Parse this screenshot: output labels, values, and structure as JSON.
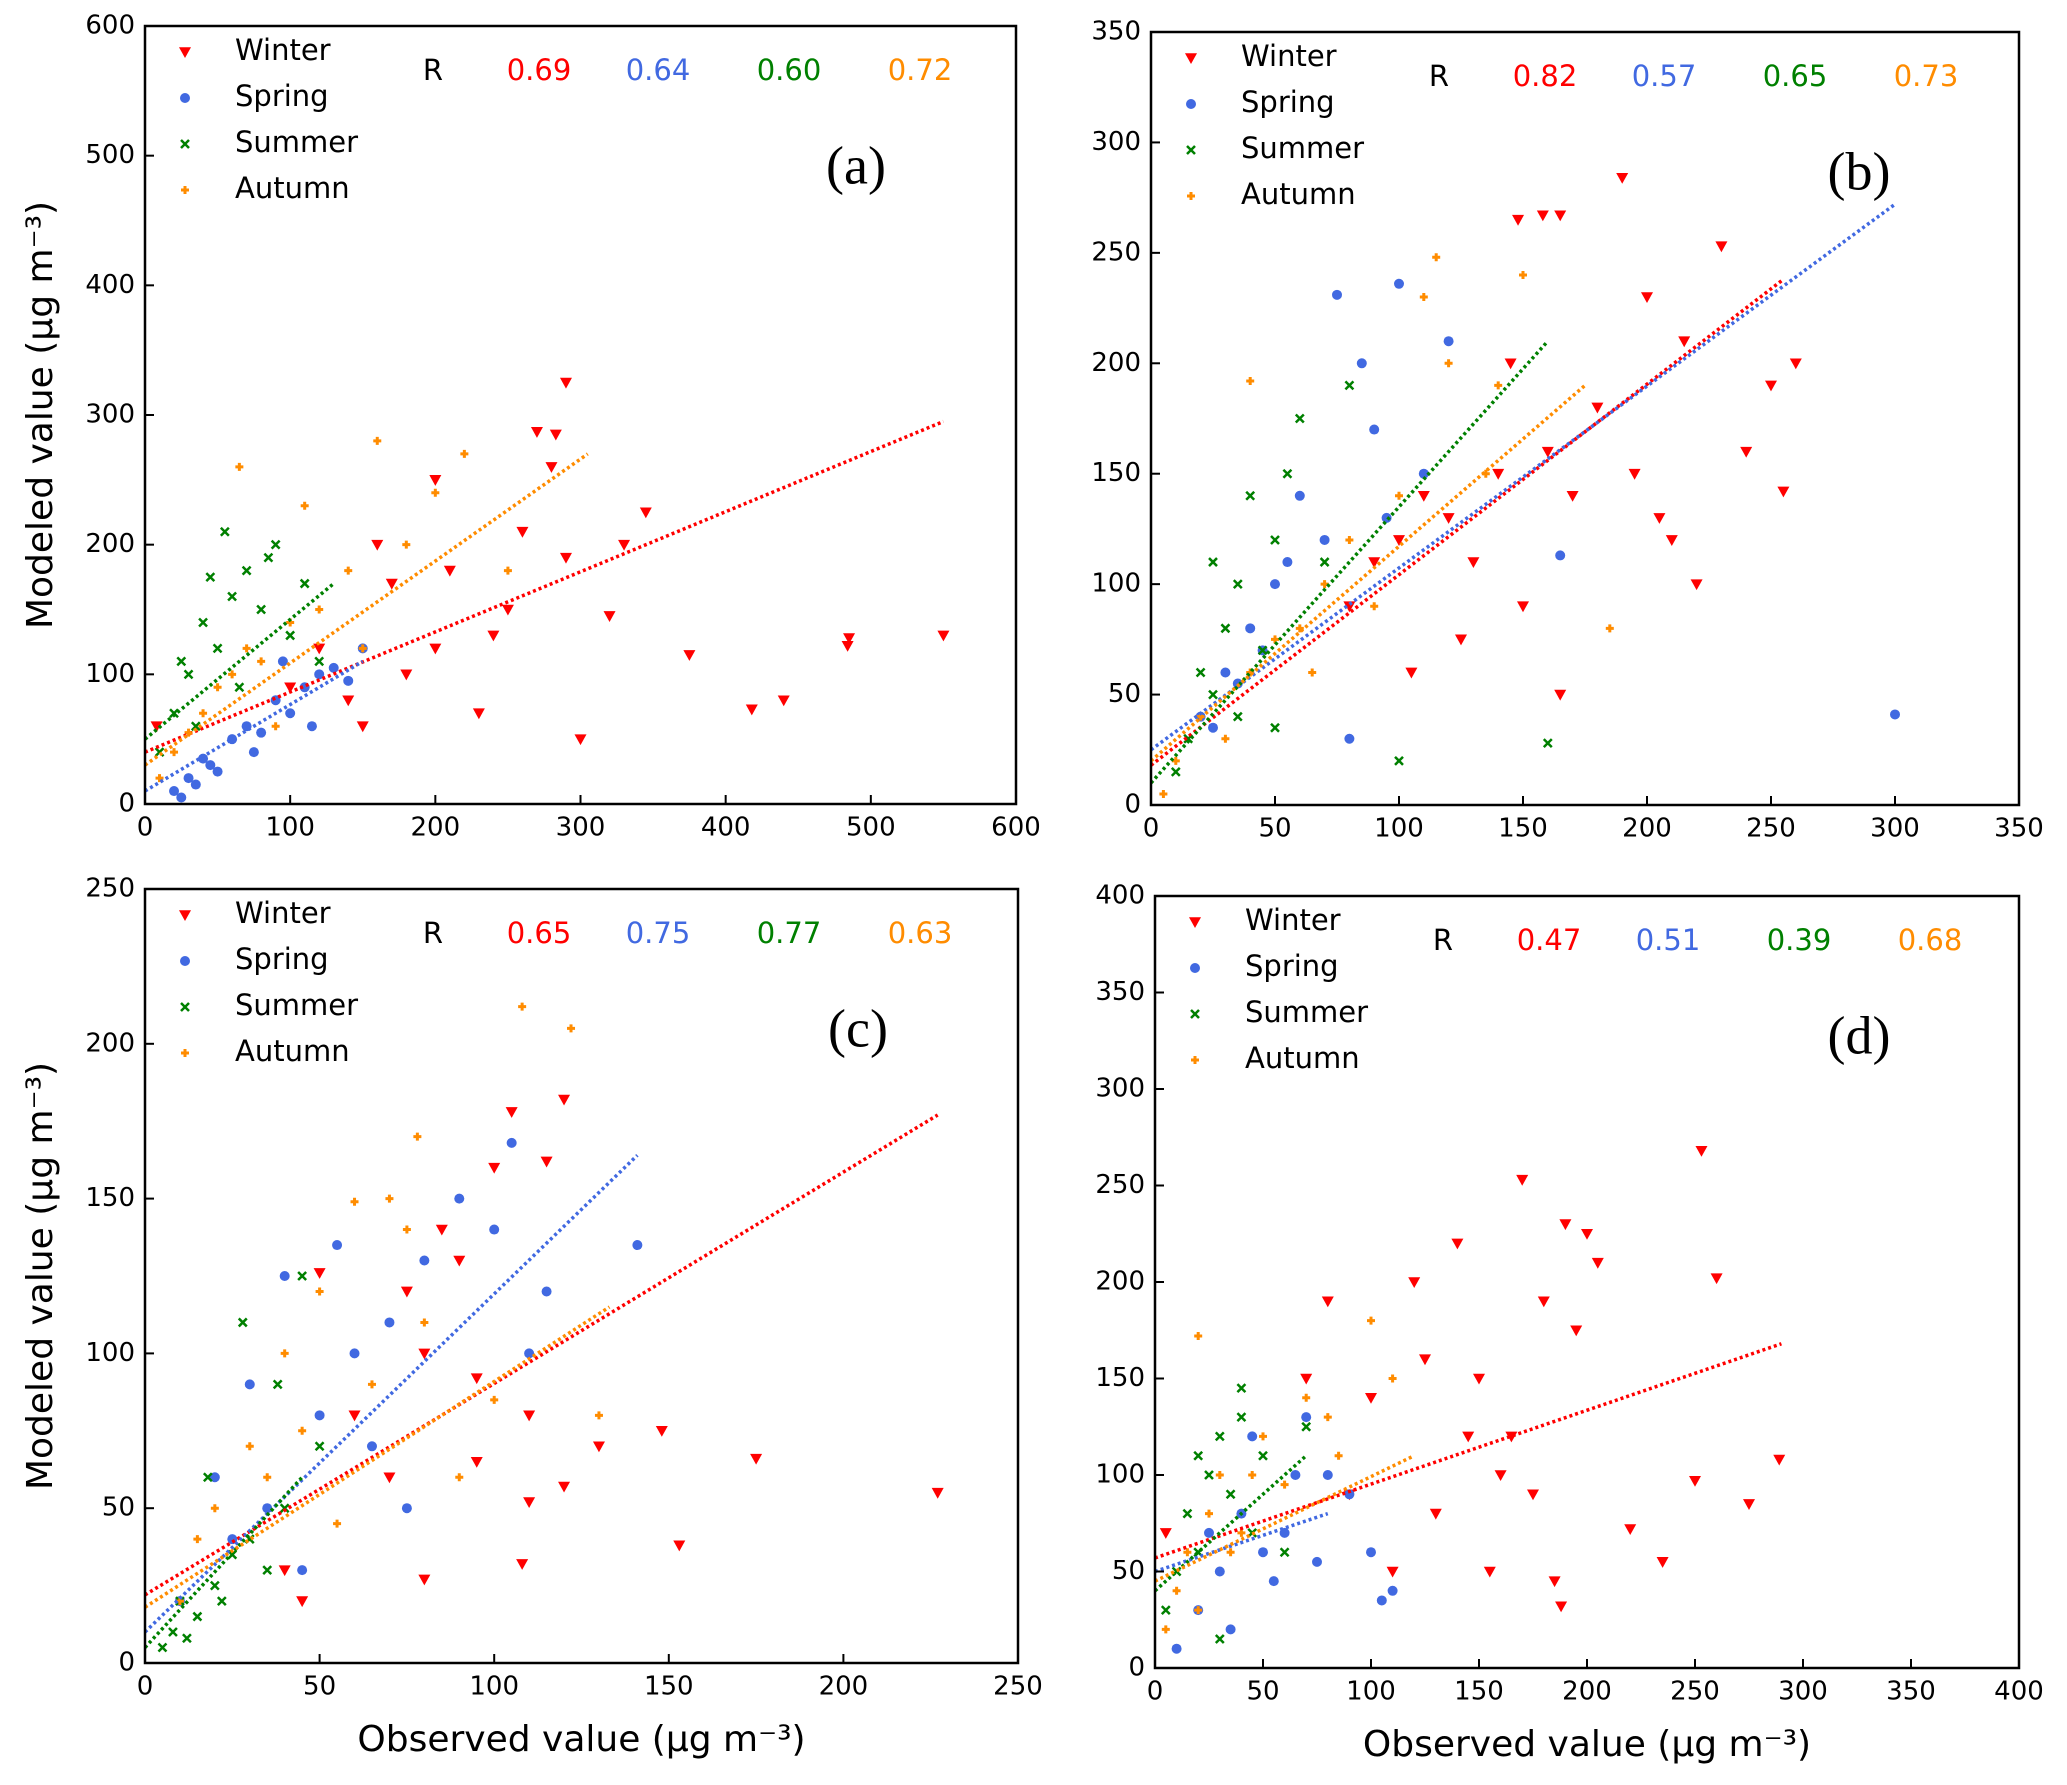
{
  "chart_data": [
    {
      "type": "scatter",
      "panel_label": "(a)",
      "ylabel": "Modeled value (μg m⁻³)",
      "xlim": [
        0,
        600
      ],
      "ylim": [
        0,
        600
      ],
      "xticks": [
        0,
        100,
        200,
        300,
        400,
        500,
        600
      ],
      "yticks": [
        0,
        100,
        200,
        300,
        400,
        500,
        600
      ],
      "r_label": "R",
      "r_values": [
        0.69,
        0.64,
        0.6,
        0.72
      ],
      "r_value_labels": [
        "0.69",
        "0.64",
        "0.60",
        "0.72"
      ],
      "series": [
        {
          "name": "Winter",
          "color": "#ff0000",
          "marker": "v",
          "x": [
            290,
            283,
            270,
            550,
            485,
            484,
            440,
            418,
            375,
            345,
            330,
            300,
            280,
            250,
            230,
            210,
            200,
            180,
            160,
            150,
            140,
            120,
            100,
            260,
            240,
            320,
            200,
            170,
            8,
            290
          ],
          "values": [
            325,
            285,
            287,
            130,
            128,
            122,
            80,
            73,
            115,
            225,
            200,
            50,
            260,
            150,
            70,
            180,
            120,
            100,
            200,
            60,
            80,
            120,
            90,
            210,
            130,
            145,
            250,
            170,
            60,
            190
          ],
          "fit_x": [
            0,
            550
          ],
          "fit_y": [
            40,
            295
          ]
        },
        {
          "name": "Spring",
          "color": "#4169e1",
          "marker": "o",
          "x": [
            20,
            30,
            40,
            50,
            60,
            70,
            80,
            90,
            100,
            110,
            120,
            130,
            140,
            150,
            25,
            35,
            45,
            75,
            95,
            115
          ],
          "values": [
            10,
            20,
            35,
            25,
            50,
            60,
            55,
            80,
            70,
            90,
            100,
            105,
            95,
            120,
            5,
            15,
            30,
            40,
            110,
            60
          ],
          "fit_x": [
            0,
            150
          ],
          "fit_y": [
            10,
            110
          ]
        },
        {
          "name": "Summer",
          "color": "#008000",
          "marker": "x",
          "x": [
            10,
            20,
            30,
            40,
            50,
            60,
            70,
            80,
            90,
            100,
            110,
            120,
            35,
            55,
            65,
            85,
            25,
            45
          ],
          "values": [
            40,
            70,
            100,
            140,
            120,
            160,
            180,
            150,
            200,
            130,
            170,
            110,
            60,
            210,
            90,
            190,
            110,
            175
          ],
          "fit_x": [
            0,
            130
          ],
          "fit_y": [
            50,
            170
          ]
        },
        {
          "name": "Autumn",
          "color": "#ff8c00",
          "marker": "P",
          "x": [
            10,
            20,
            30,
            40,
            50,
            60,
            70,
            80,
            100,
            120,
            140,
            160,
            180,
            200,
            220,
            65,
            150,
            250,
            90,
            110
          ],
          "values": [
            20,
            40,
            55,
            70,
            90,
            100,
            120,
            110,
            140,
            150,
            180,
            280,
            200,
            240,
            270,
            260,
            120,
            180,
            60,
            230
          ],
          "fit_x": [
            0,
            305
          ],
          "fit_y": [
            30,
            270
          ]
        }
      ]
    },
    {
      "type": "scatter",
      "panel_label": "(b)",
      "xlim": [
        0,
        350
      ],
      "ylim": [
        0,
        350
      ],
      "xticks": [
        0,
        50,
        100,
        150,
        200,
        250,
        300,
        350
      ],
      "yticks": [
        0,
        50,
        100,
        150,
        200,
        250,
        300,
        350
      ],
      "r_label": "R",
      "r_values": [
        0.82,
        0.57,
        0.65,
        0.73
      ],
      "r_value_labels": [
        "0.82",
        "0.57",
        "0.65",
        "0.73"
      ],
      "series": [
        {
          "name": "Winter",
          "color": "#ff0000",
          "marker": "v",
          "x": [
            190,
            165,
            158,
            148,
            230,
            250,
            255,
            260,
            240,
            220,
            210,
            200,
            180,
            170,
            160,
            140,
            130,
            120,
            110,
            100,
            90,
            80,
            150,
            165,
            195,
            205,
            215,
            145,
            125,
            105
          ],
          "values": [
            284,
            267,
            267,
            265,
            253,
            190,
            142,
            200,
            160,
            100,
            120,
            230,
            180,
            140,
            160,
            150,
            110,
            130,
            140,
            120,
            110,
            90,
            90,
            50,
            150,
            130,
            210,
            200,
            75,
            60
          ],
          "fit_x": [
            0,
            255
          ],
          "fit_y": [
            18,
            238
          ]
        },
        {
          "name": "Spring",
          "color": "#4169e1",
          "marker": "o",
          "x": [
            300,
            100,
            75,
            85,
            60,
            50,
            40,
            30,
            20,
            70,
            90,
            110,
            120,
            165,
            55,
            45,
            35,
            25,
            95,
            80
          ],
          "values": [
            41,
            236,
            231,
            200,
            140,
            100,
            80,
            60,
            40,
            120,
            170,
            150,
            210,
            113,
            110,
            70,
            55,
            35,
            130,
            30
          ],
          "fit_x": [
            0,
            300
          ],
          "fit_y": [
            25,
            272
          ]
        },
        {
          "name": "Summer",
          "color": "#008000",
          "marker": "x",
          "x": [
            10,
            15,
            20,
            25,
            30,
            35,
            40,
            45,
            50,
            55,
            60,
            70,
            80,
            100,
            160,
            35,
            25,
            50
          ],
          "values": [
            15,
            30,
            60,
            50,
            80,
            100,
            140,
            70,
            120,
            150,
            175,
            110,
            190,
            20,
            28,
            40,
            110,
            35
          ],
          "fit_x": [
            0,
            160
          ],
          "fit_y": [
            10,
            210
          ]
        },
        {
          "name": "Autumn",
          "color": "#ff8c00",
          "marker": "P",
          "x": [
            5,
            10,
            20,
            30,
            40,
            50,
            60,
            70,
            80,
            90,
            100,
            120,
            140,
            150,
            185,
            115,
            135,
            110,
            40,
            65
          ],
          "values": [
            5,
            20,
            40,
            30,
            60,
            75,
            80,
            100,
            120,
            90,
            140,
            200,
            190,
            240,
            80,
            248,
            150,
            230,
            192,
            60
          ],
          "fit_x": [
            0,
            175
          ],
          "fit_y": [
            20,
            190
          ]
        }
      ]
    },
    {
      "type": "scatter",
      "panel_label": "(c)",
      "ylabel": "Modeled value (μg m⁻³)",
      "xlabel": "Observed value (μg m⁻³)",
      "xlim": [
        0,
        250
      ],
      "ylim": [
        0,
        250
      ],
      "xticks": [
        0,
        50,
        100,
        150,
        200,
        250
      ],
      "yticks": [
        0,
        50,
        100,
        150,
        200,
        250
      ],
      "r_label": "R",
      "r_values": [
        0.65,
        0.75,
        0.77,
        0.63
      ],
      "r_value_labels": [
        "0.65",
        "0.75",
        "0.77",
        "0.63"
      ],
      "series": [
        {
          "name": "Winter",
          "color": "#ff0000",
          "marker": "v",
          "x": [
            227,
            175,
            153,
            148,
            130,
            120,
            115,
            110,
            108,
            100,
            95,
            90,
            85,
            80,
            75,
            70,
            60,
            50,
            45,
            40,
            120,
            105,
            80,
            110,
            95
          ],
          "values": [
            55,
            66,
            38,
            75,
            70,
            182,
            162,
            52,
            32,
            160,
            65,
            130,
            140,
            100,
            120,
            60,
            80,
            126,
            20,
            30,
            57,
            178,
            27,
            80,
            92
          ],
          "fit_x": [
            0,
            227
          ],
          "fit_y": [
            22,
            177
          ]
        },
        {
          "name": "Spring",
          "color": "#4169e1",
          "marker": "o",
          "x": [
            141,
            105,
            110,
            100,
            90,
            80,
            70,
            60,
            55,
            50,
            40,
            30,
            20,
            10,
            45,
            35,
            25,
            65,
            75,
            115
          ],
          "values": [
            135,
            168,
            100,
            140,
            150,
            130,
            110,
            100,
            135,
            80,
            125,
            90,
            60,
            20,
            30,
            50,
            40,
            70,
            50,
            120
          ],
          "fit_x": [
            0,
            141
          ],
          "fit_y": [
            10,
            164
          ]
        },
        {
          "name": "Summer",
          "color": "#008000",
          "marker": "x",
          "x": [
            5,
            8,
            10,
            15,
            20,
            25,
            30,
            35,
            40,
            45,
            28,
            12,
            18,
            22,
            50,
            38
          ],
          "values": [
            5,
            10,
            20,
            15,
            25,
            35,
            40,
            30,
            50,
            125,
            110,
            8,
            60,
            20,
            70,
            90
          ],
          "fit_x": [
            0,
            45
          ],
          "fit_y": [
            5,
            60
          ]
        },
        {
          "name": "Autumn",
          "color": "#ff8c00",
          "marker": "P",
          "x": [
            108,
            122,
            78,
            70,
            60,
            50,
            40,
            30,
            20,
            15,
            10,
            80,
            90,
            100,
            130,
            65,
            55,
            35,
            45,
            75
          ],
          "values": [
            212,
            205,
            170,
            150,
            149,
            120,
            100,
            70,
            50,
            40,
            20,
            110,
            60,
            85,
            80,
            90,
            45,
            60,
            75,
            140
          ],
          "fit_x": [
            0,
            133
          ],
          "fit_y": [
            18,
            115
          ]
        }
      ]
    },
    {
      "type": "scatter",
      "panel_label": "(d)",
      "xlabel": "Observed value (μg m⁻³)",
      "xlim": [
        0,
        400
      ],
      "ylim": [
        0,
        400
      ],
      "xticks": [
        0,
        50,
        100,
        150,
        200,
        250,
        300,
        350,
        400
      ],
      "yticks": [
        0,
        50,
        100,
        150,
        200,
        250,
        300,
        350,
        400
      ],
      "r_label": "R",
      "r_values": [
        0.47,
        0.51,
        0.39,
        0.68
      ],
      "r_value_labels": [
        "0.47",
        "0.51",
        "0.39",
        "0.68"
      ],
      "series": [
        {
          "name": "Winter",
          "color": "#ff0000",
          "marker": "v",
          "x": [
            253,
            260,
            289,
            275,
            250,
            235,
            220,
            205,
            200,
            190,
            188,
            180,
            170,
            165,
            160,
            150,
            140,
            130,
            120,
            110,
            100,
            90,
            80,
            70,
            5,
            195,
            175,
            155,
            125,
            145,
            185
          ],
          "values": [
            268,
            202,
            108,
            85,
            97,
            55,
            72,
            210,
            225,
            230,
            32,
            190,
            253,
            120,
            100,
            150,
            220,
            80,
            200,
            50,
            140,
            90,
            190,
            150,
            70,
            175,
            90,
            50,
            160,
            120,
            45
          ],
          "fit_x": [
            0,
            290
          ],
          "fit_y": [
            57,
            168
          ]
        },
        {
          "name": "Spring",
          "color": "#4169e1",
          "marker": "o",
          "x": [
            10,
            20,
            30,
            40,
            50,
            60,
            70,
            80,
            90,
            100,
            110,
            45,
            35,
            25,
            55,
            65,
            75,
            105
          ],
          "values": [
            10,
            30,
            50,
            80,
            60,
            70,
            130,
            100,
            90,
            60,
            40,
            120,
            20,
            70,
            45,
            100,
            55,
            35
          ],
          "fit_x": [
            0,
            80
          ],
          "fit_y": [
            50,
            80
          ]
        },
        {
          "name": "Summer",
          "color": "#008000",
          "marker": "x",
          "x": [
            5,
            10,
            15,
            20,
            25,
            30,
            35,
            40,
            45,
            50,
            60,
            70,
            30,
            20,
            40
          ],
          "values": [
            30,
            50,
            80,
            60,
            100,
            120,
            90,
            130,
            70,
            110,
            60,
            125,
            15,
            110,
            145
          ],
          "fit_x": [
            0,
            70
          ],
          "fit_y": [
            40,
            110
          ]
        },
        {
          "name": "Autumn",
          "color": "#ff8c00",
          "marker": "P",
          "x": [
            5,
            10,
            15,
            20,
            25,
            30,
            40,
            50,
            60,
            70,
            80,
            100,
            110,
            20,
            35,
            45,
            85
          ],
          "values": [
            20,
            40,
            60,
            172,
            80,
            100,
            70,
            120,
            95,
            140,
            130,
            180,
            150,
            30,
            60,
            100,
            110
          ],
          "fit_x": [
            0,
            120
          ],
          "fit_y": [
            45,
            110
          ]
        }
      ]
    }
  ]
}
